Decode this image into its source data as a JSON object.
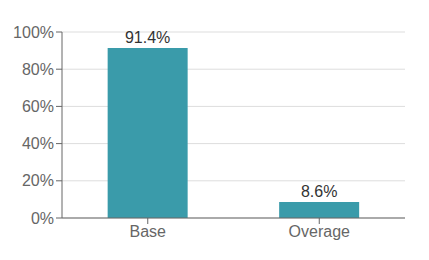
{
  "chart_data": {
    "type": "bar",
    "categories": [
      "Base",
      "Overage"
    ],
    "values": [
      91.4,
      8.6
    ],
    "value_labels": [
      "91.4%",
      "8.6%"
    ],
    "color": "#3A9BAA",
    "ylim": [
      0,
      100
    ],
    "yticks": [
      {
        "value": 0,
        "label": "0%"
      },
      {
        "value": 20,
        "label": "20%"
      },
      {
        "value": 40,
        "label": "40%"
      },
      {
        "value": 60,
        "label": "60%"
      },
      {
        "value": 80,
        "label": "80%"
      },
      {
        "value": 100,
        "label": "100%"
      }
    ],
    "grid": true,
    "data_labels": true
  }
}
